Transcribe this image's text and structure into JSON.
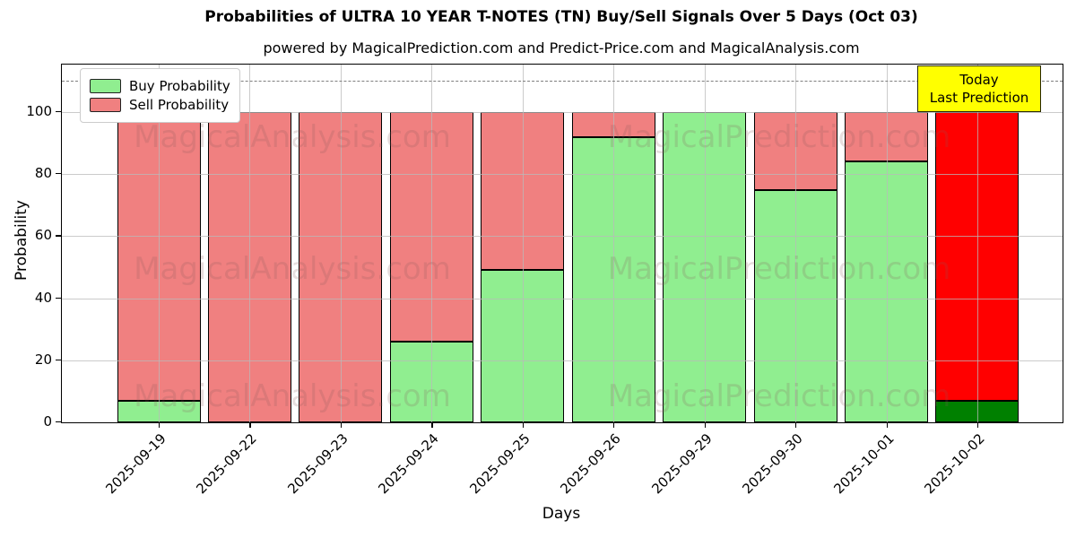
{
  "title": "Probabilities of ULTRA 10 YEAR T-NOTES (TN) Buy/Sell Signals Over 5 Days (Oct 03)",
  "subtitle": "powered by MagicalPrediction.com and Predict-Price.com and MagicalAnalysis.com",
  "legend": {
    "items": [
      {
        "label": "Buy Probability",
        "color": "#90ee90"
      },
      {
        "label": "Sell Probability",
        "color": "#f08080"
      }
    ]
  },
  "annotation": {
    "line1": "Today",
    "line2": "Last Prediction",
    "bg_color": "#ffff00"
  },
  "watermarks": {
    "left": "MagicalAnalysis.com",
    "right": "MagicalPrediction.com"
  },
  "chart_data": {
    "type": "bar",
    "stacked": true,
    "title": "Probabilities of ULTRA 10 YEAR T-NOTES (TN) Buy/Sell Signals Over 5 Days (Oct 03)",
    "xlabel": "Days",
    "ylabel": "Probability",
    "categories": [
      "2025-09-19",
      "2025-09-22",
      "2025-09-23",
      "2025-09-24",
      "2025-09-25",
      "2025-09-26",
      "2025-09-29",
      "2025-09-30",
      "2025-10-01",
      "2025-10-02"
    ],
    "series": [
      {
        "name": "Buy Probability",
        "color": "#90ee90",
        "today_color": "#008000",
        "values": [
          7,
          0,
          0,
          26,
          49,
          92,
          100,
          75,
          84,
          7
        ]
      },
      {
        "name": "Sell Probability",
        "color": "#f08080",
        "today_color": "#ff0000",
        "values": [
          93,
          100,
          100,
          74,
          51,
          8,
          0,
          25,
          16,
          93
        ]
      }
    ],
    "today_index": 9,
    "yticks": [
      0,
      20,
      40,
      60,
      80,
      100
    ],
    "ylim": [
      0,
      115.3
    ],
    "dashed_line_y": 110,
    "grid": true,
    "legend_position": "upper left",
    "bar_edge_color": "#000000"
  }
}
